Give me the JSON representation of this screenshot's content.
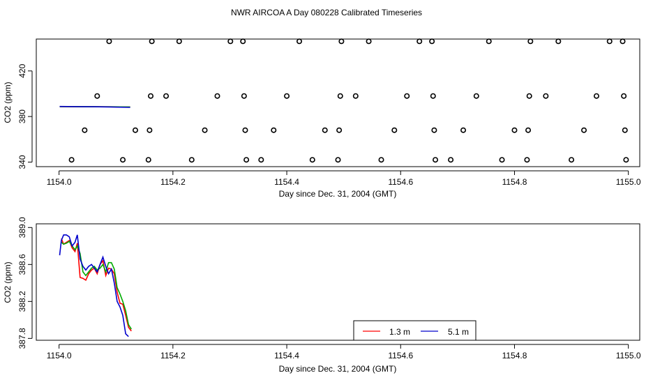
{
  "title": "NWR AIRCOA A  Day 080228  Calibrated Timeseries",
  "chart_data": [
    {
      "type": "scatter",
      "xlabel": "Day since Dec. 31, 2004 (GMT)",
      "ylabel": "CO2 (ppm)",
      "xlim": [
        1153.96,
        1155.02
      ],
      "ylim": [
        336,
        448
      ],
      "xticks": [
        1154.0,
        1154.2,
        1154.4,
        1154.6,
        1154.8,
        1155.0
      ],
      "xtick_labels": [
        "1154.0",
        "1154.2",
        "1154.4",
        "1154.6",
        "1154.8",
        "1155.0"
      ],
      "yticks": [
        340,
        380,
        420
      ],
      "ytick_labels": [
        "340",
        "380",
        "420"
      ],
      "grid": false,
      "points": [
        {
          "x": 1154.022,
          "y": 342
        },
        {
          "x": 1154.045,
          "y": 368
        },
        {
          "x": 1154.067,
          "y": 398
        },
        {
          "x": 1154.088,
          "y": 446
        },
        {
          "x": 1154.112,
          "y": 342
        },
        {
          "x": 1154.134,
          "y": 368
        },
        {
          "x": 1154.157,
          "y": 342
        },
        {
          "x": 1154.159,
          "y": 368
        },
        {
          "x": 1154.161,
          "y": 398
        },
        {
          "x": 1154.163,
          "y": 446
        },
        {
          "x": 1154.188,
          "y": 398
        },
        {
          "x": 1154.211,
          "y": 446
        },
        {
          "x": 1154.233,
          "y": 342
        },
        {
          "x": 1154.256,
          "y": 368
        },
        {
          "x": 1154.278,
          "y": 398
        },
        {
          "x": 1154.301,
          "y": 446
        },
        {
          "x": 1154.323,
          "y": 446
        },
        {
          "x": 1154.325,
          "y": 398
        },
        {
          "x": 1154.327,
          "y": 368
        },
        {
          "x": 1154.329,
          "y": 342
        },
        {
          "x": 1154.355,
          "y": 342
        },
        {
          "x": 1154.377,
          "y": 368
        },
        {
          "x": 1154.4,
          "y": 398
        },
        {
          "x": 1154.422,
          "y": 446
        },
        {
          "x": 1154.445,
          "y": 342
        },
        {
          "x": 1154.467,
          "y": 368
        },
        {
          "x": 1154.49,
          "y": 342
        },
        {
          "x": 1154.492,
          "y": 368
        },
        {
          "x": 1154.494,
          "y": 398
        },
        {
          "x": 1154.496,
          "y": 446
        },
        {
          "x": 1154.521,
          "y": 398
        },
        {
          "x": 1154.544,
          "y": 446
        },
        {
          "x": 1154.566,
          "y": 342
        },
        {
          "x": 1154.589,
          "y": 368
        },
        {
          "x": 1154.611,
          "y": 398
        },
        {
          "x": 1154.633,
          "y": 446
        },
        {
          "x": 1154.655,
          "y": 446
        },
        {
          "x": 1154.657,
          "y": 398
        },
        {
          "x": 1154.659,
          "y": 368
        },
        {
          "x": 1154.661,
          "y": 342
        },
        {
          "x": 1154.688,
          "y": 342
        },
        {
          "x": 1154.71,
          "y": 368
        },
        {
          "x": 1154.733,
          "y": 398
        },
        {
          "x": 1154.755,
          "y": 446
        },
        {
          "x": 1154.778,
          "y": 342
        },
        {
          "x": 1154.8,
          "y": 368
        },
        {
          "x": 1154.822,
          "y": 342
        },
        {
          "x": 1154.824,
          "y": 368
        },
        {
          "x": 1154.826,
          "y": 398
        },
        {
          "x": 1154.828,
          "y": 446
        },
        {
          "x": 1154.855,
          "y": 398
        },
        {
          "x": 1154.877,
          "y": 446
        },
        {
          "x": 1154.9,
          "y": 342
        },
        {
          "x": 1154.922,
          "y": 368
        },
        {
          "x": 1154.944,
          "y": 398
        },
        {
          "x": 1154.967,
          "y": 446
        },
        {
          "x": 1154.99,
          "y": 446
        },
        {
          "x": 1154.992,
          "y": 398
        },
        {
          "x": 1154.994,
          "y": 368
        },
        {
          "x": 1154.996,
          "y": 342
        }
      ],
      "series": [
        {
          "color": "#ff0000",
          "x": [
            1154.001,
            1154.03,
            1154.06,
            1154.09,
            1154.125
          ],
          "y": [
            388.7,
            388.6,
            388.6,
            388.5,
            388.4
          ]
        },
        {
          "color": "#00aa00",
          "x": [
            1154.001,
            1154.03,
            1154.06,
            1154.09,
            1154.125
          ],
          "y": [
            388.7,
            388.7,
            388.6,
            388.5,
            388.4
          ]
        },
        {
          "color": "#0000cc",
          "x": [
            1154.001,
            1154.03,
            1154.06,
            1154.09,
            1154.125
          ],
          "y": [
            388.8,
            388.7,
            388.6,
            388.4,
            388.0
          ]
        }
      ]
    },
    {
      "type": "line",
      "xlabel": "Day since Dec. 31, 2004 (GMT)",
      "ylabel": "CO2 (ppm)",
      "xlim": [
        1153.96,
        1155.02
      ],
      "ylim": [
        387.78,
        389.04
      ],
      "xticks": [
        1154.0,
        1154.2,
        1154.4,
        1154.6,
        1154.8,
        1155.0
      ],
      "xtick_labels": [
        "1154.0",
        "1154.2",
        "1154.4",
        "1154.6",
        "1154.8",
        "1155.0"
      ],
      "yticks": [
        387.8,
        388.2,
        388.6,
        389.0
      ],
      "ytick_labels": [
        "387.8",
        "388.2",
        "388.6",
        "389.0"
      ],
      "grid": false,
      "legend": {
        "position": "bottom-center",
        "entries": [
          {
            "label": "1.3 m",
            "color": "#ff0000"
          },
          {
            "label": "5.1 m",
            "color": "#0000cc"
          }
        ]
      },
      "series": [
        {
          "name": "1.3 m",
          "color": "#ff0000",
          "x": [
            1154.004,
            1154.008,
            1154.013,
            1154.018,
            1154.023,
            1154.028,
            1154.032,
            1154.037,
            1154.042,
            1154.047,
            1154.052,
            1154.057,
            1154.062,
            1154.067,
            1154.072,
            1154.077,
            1154.082,
            1154.087,
            1154.092,
            1154.097,
            1154.102,
            1154.107,
            1154.112,
            1154.117,
            1154.122,
            1154.127
          ],
          "y": [
            388.88,
            388.82,
            388.84,
            388.86,
            388.78,
            388.74,
            388.83,
            388.46,
            388.45,
            388.43,
            388.5,
            388.54,
            388.56,
            388.5,
            388.6,
            388.64,
            388.48,
            388.56,
            388.55,
            388.5,
            388.3,
            388.18,
            388.17,
            388.05,
            387.92,
            387.88
          ]
        },
        {
          "name": "",
          "color": "#00aa00",
          "x": [
            1154.004,
            1154.008,
            1154.013,
            1154.018,
            1154.023,
            1154.028,
            1154.032,
            1154.037,
            1154.042,
            1154.047,
            1154.052,
            1154.057,
            1154.062,
            1154.067,
            1154.072,
            1154.077,
            1154.082,
            1154.087,
            1154.092,
            1154.097,
            1154.102,
            1154.107,
            1154.112,
            1154.117,
            1154.122,
            1154.127
          ],
          "y": [
            388.84,
            388.82,
            388.83,
            388.85,
            388.8,
            388.76,
            388.8,
            388.72,
            388.52,
            388.48,
            388.52,
            388.56,
            388.58,
            388.54,
            388.56,
            388.6,
            388.52,
            388.62,
            388.62,
            388.55,
            388.35,
            388.28,
            388.2,
            388.1,
            387.95,
            387.9
          ]
        },
        {
          "name": "5.1 m",
          "color": "#0000cc",
          "x": [
            1154.001,
            1154.004,
            1154.008,
            1154.013,
            1154.018,
            1154.023,
            1154.028,
            1154.032,
            1154.037,
            1154.042,
            1154.047,
            1154.052,
            1154.057,
            1154.062,
            1154.067,
            1154.072,
            1154.077,
            1154.082,
            1154.087,
            1154.092,
            1154.097,
            1154.102,
            1154.107,
            1154.112,
            1154.117,
            1154.122
          ],
          "y": [
            388.7,
            388.86,
            388.92,
            388.92,
            388.9,
            388.8,
            388.84,
            388.92,
            388.66,
            388.58,
            388.54,
            388.58,
            388.6,
            388.56,
            388.52,
            388.6,
            388.68,
            388.58,
            388.5,
            388.55,
            388.4,
            388.2,
            388.14,
            388.05,
            387.85,
            387.82
          ]
        }
      ]
    }
  ]
}
